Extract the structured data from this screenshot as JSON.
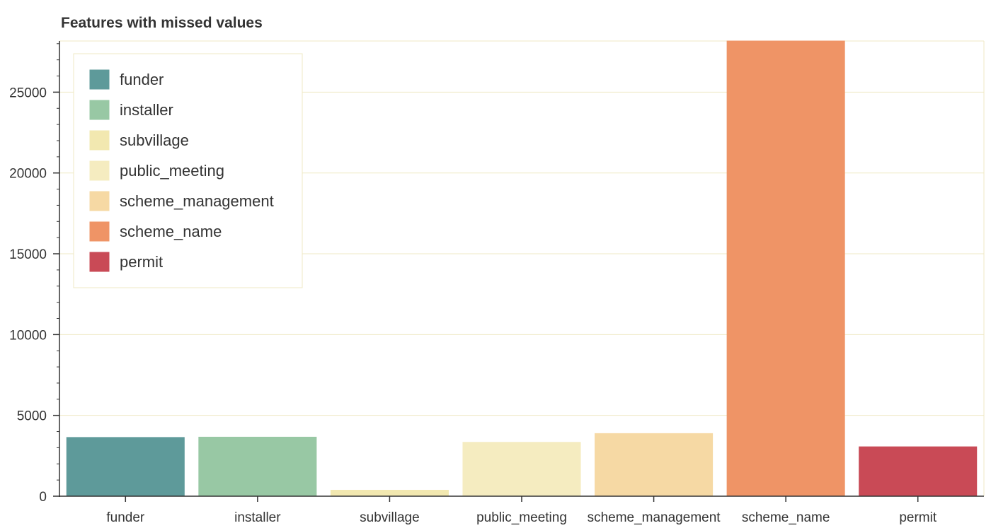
{
  "chart_data": {
    "type": "bar",
    "title": "Features with missed values",
    "xlabel": "",
    "ylabel": "",
    "categories": [
      "funder",
      "installer",
      "subvillage",
      "public_meeting",
      "scheme_management",
      "scheme_name",
      "permit"
    ],
    "values": [
      3635,
      3655,
      371,
      3334,
      3877,
      28166,
      3056
    ],
    "colors": [
      "#5e9a9a",
      "#98c8a4",
      "#f2e8b0",
      "#f5ecc0",
      "#f6d9a4",
      "#ef9466",
      "#c94a56"
    ],
    "ylim": [
      0,
      28166
    ],
    "yticks": [
      0,
      5000,
      10000,
      15000,
      20000,
      25000
    ],
    "ytick_labels": [
      "0",
      "5000",
      "10000",
      "15000",
      "20000",
      "25000"
    ],
    "grid": "horizontal",
    "legend": {
      "placement": "top-left",
      "entries": [
        "funder",
        "installer",
        "subvillage",
        "public_meeting",
        "scheme_management",
        "scheme_name",
        "permit"
      ]
    }
  }
}
